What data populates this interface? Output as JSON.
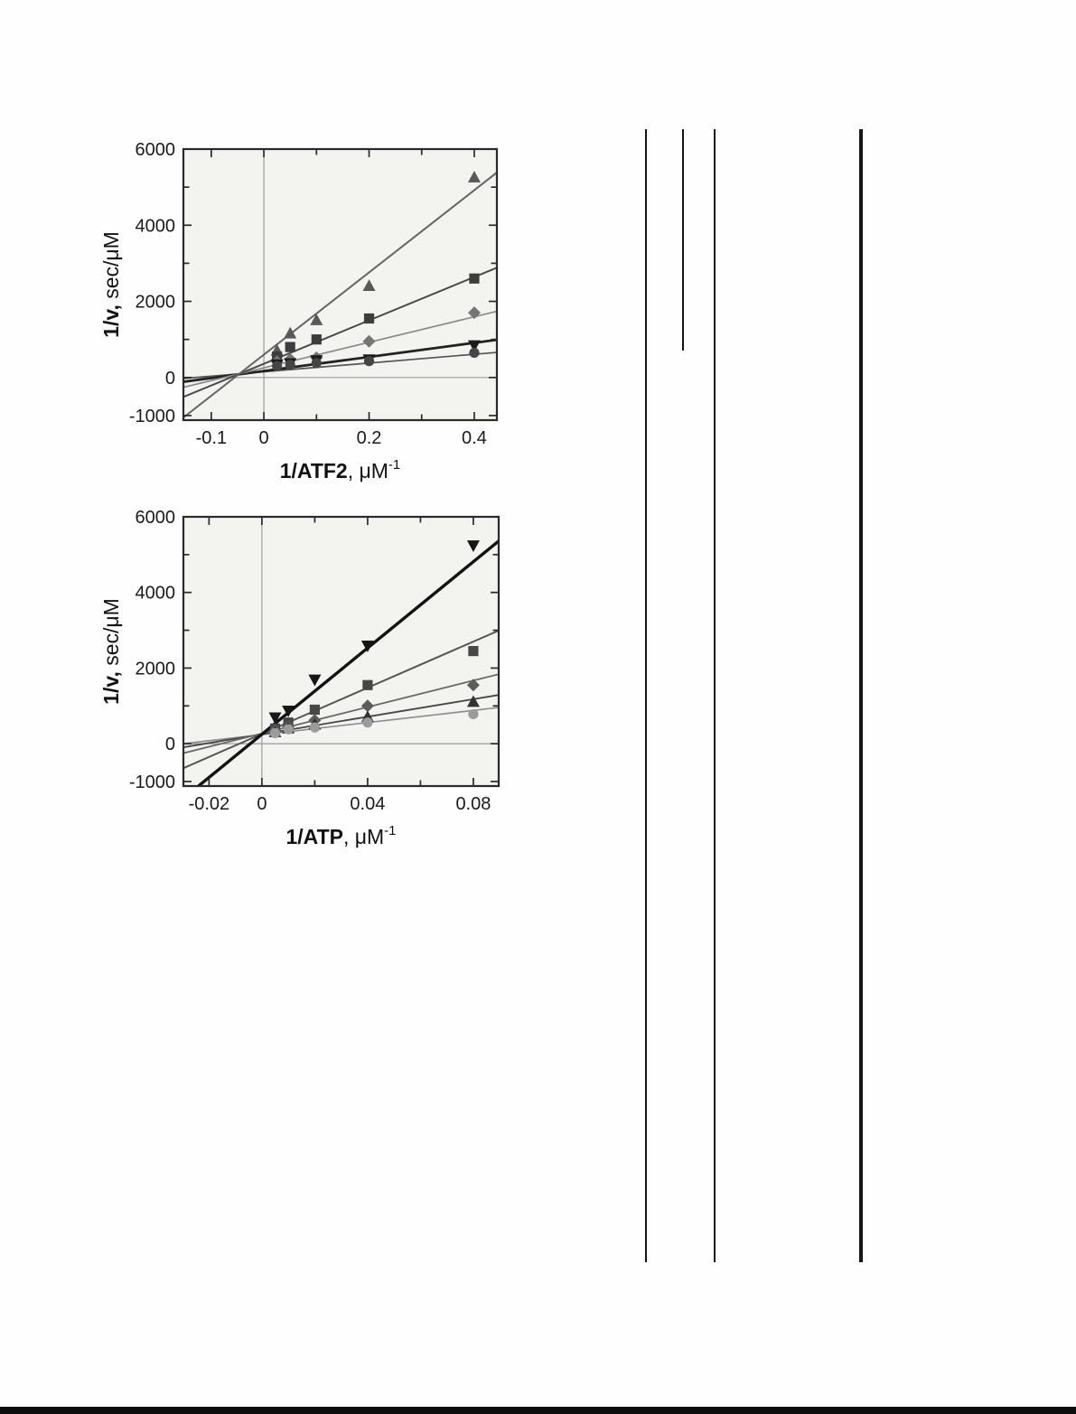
{
  "page": {
    "background_color": "#fefefe",
    "accent_ink_color": "#161616"
  },
  "chart_data": [
    {
      "type": "scatter",
      "title": "",
      "xlabel": {
        "bold": "1/ATF2",
        "unit": ", μM",
        "sup": "-1"
      },
      "ylabel": {
        "bold": "1/v,",
        "unit": " sec/μM"
      },
      "xlim": [
        -0.153,
        0.443
      ],
      "ylim": [
        -1120,
        6000
      ],
      "grid": false,
      "legend": null,
      "plot_bg": "#f3f3f0",
      "axis_color": "#2a2a2a",
      "zero_line_color": "#9a9a9a",
      "x_ticks": [
        {
          "v": -0.1,
          "label": "-0.1"
        },
        {
          "v": 0,
          "label": "0"
        },
        {
          "v": 0.1
        },
        {
          "v": 0.2,
          "label": "0.2"
        },
        {
          "v": 0.3
        },
        {
          "v": 0.4,
          "label": "0.4"
        }
      ],
      "y_ticks": [
        {
          "v": -1000,
          "label": "-1000"
        },
        {
          "v": 0,
          "label": "0"
        },
        {
          "v": 1000
        },
        {
          "v": 2000,
          "label": "2000"
        },
        {
          "v": 3000
        },
        {
          "v": 4000,
          "label": "4000"
        },
        {
          "v": 5000
        },
        {
          "v": 6000,
          "label": "6000"
        }
      ],
      "series": [
        {
          "name": "triangle-up-series",
          "marker": "triangle-up",
          "color": "#595959",
          "line_color": "#636363",
          "line_width": 2,
          "x": [
            0.025,
            0.05,
            0.1,
            0.2,
            0.4
          ],
          "y": [
            700,
            1150,
            1500,
            2400,
            5250
          ],
          "fit_line": {
            "x": [
              -0.153,
              0.443
            ],
            "y": [
              -1052,
              5384
            ]
          }
        },
        {
          "name": "square-series",
          "marker": "square",
          "color": "#3d3d3d",
          "line_color": "#4a4a4a",
          "line_width": 2,
          "x": [
            0.025,
            0.05,
            0.1,
            0.2,
            0.4
          ],
          "y": [
            550,
            800,
            1000,
            1550,
            2600
          ],
          "fit_line": {
            "x": [
              -0.153,
              0.443
            ],
            "y": [
              -512,
              2885
            ]
          }
        },
        {
          "name": "diamond-series",
          "marker": "diamond",
          "color": "#757575",
          "line_color": "#8a8a8a",
          "line_width": 1.7,
          "x": [
            0.025,
            0.05,
            0.1,
            0.2,
            0.4
          ],
          "y": [
            420,
            480,
            520,
            950,
            1700
          ],
          "fit_line": {
            "x": [
              -0.153,
              0.443
            ],
            "y": [
              -258,
              1739
            ]
          }
        },
        {
          "name": "triangle-down-series",
          "marker": "triangle-down",
          "color": "#1c1c1c",
          "line_color": "#222222",
          "line_width": 2.8,
          "x": [
            0.025,
            0.05,
            0.1,
            0.2,
            0.4
          ],
          "y": [
            350,
            380,
            460,
            480,
            850
          ],
          "fit_line": {
            "x": [
              -0.153,
              0.443
            ],
            "y": [
              -113,
              990
            ]
          }
        },
        {
          "name": "circle-series",
          "marker": "circle",
          "color": "#454545",
          "line_color": "#555555",
          "line_width": 1.7,
          "x": [
            0.025,
            0.05,
            0.1,
            0.2,
            0.4
          ],
          "y": [
            300,
            330,
            380,
            430,
            650
          ],
          "fit_line": {
            "x": [
              -0.153,
              0.443
            ],
            "y": [
              -26,
              659
            ]
          }
        }
      ]
    },
    {
      "type": "scatter",
      "title": "",
      "xlabel": {
        "bold": "1/ATP",
        "unit": ", μM",
        "sup": "-1"
      },
      "ylabel": {
        "bold": "1/v,",
        "unit": " sec/μM"
      },
      "xlim": [
        -0.0297,
        0.0896
      ],
      "ylim": [
        -1120,
        6000
      ],
      "grid": false,
      "legend": null,
      "plot_bg": "#f3f3f0",
      "axis_color": "#2a2a2a",
      "zero_line_color": "#9a9a9a",
      "x_ticks": [
        {
          "v": -0.02,
          "label": "-0.02"
        },
        {
          "v": 0,
          "label": "0"
        },
        {
          "v": 0.02
        },
        {
          "v": 0.04,
          "label": "0.04"
        },
        {
          "v": 0.06
        },
        {
          "v": 0.08,
          "label": "0.08"
        }
      ],
      "y_ticks": [
        {
          "v": -1000,
          "label": "-1000"
        },
        {
          "v": 0,
          "label": "0"
        },
        {
          "v": 1000
        },
        {
          "v": 2000,
          "label": "2000"
        },
        {
          "v": 3000
        },
        {
          "v": 4000,
          "label": "4000"
        },
        {
          "v": 5000
        },
        {
          "v": 6000,
          "label": "6000"
        }
      ],
      "series": [
        {
          "name": "triangle-down-series",
          "marker": "triangle-down",
          "color": "#161616",
          "line_color": "#121212",
          "line_width": 3.4,
          "x": [
            0.005,
            0.01,
            0.02,
            0.04,
            0.08
          ],
          "y": [
            700,
            880,
            1700,
            2600,
            5250
          ],
          "fit_line": {
            "x": [
              -0.024,
              0.0896
            ],
            "y": [
              -1120,
              5360
            ]
          }
        },
        {
          "name": "square-series",
          "marker": "square",
          "color": "#474747",
          "line_color": "#555555",
          "line_width": 2,
          "x": [
            0.005,
            0.01,
            0.02,
            0.04,
            0.08
          ],
          "y": [
            400,
            560,
            900,
            1550,
            2450
          ],
          "fit_line": {
            "x": [
              -0.0297,
              0.0896
            ],
            "y": [
              -646,
              2993
            ]
          }
        },
        {
          "name": "diamond-series",
          "marker": "diamond",
          "color": "#5c5c5c",
          "line_color": "#6a6a6a",
          "line_width": 1.8,
          "x": [
            0.005,
            0.01,
            0.02,
            0.04,
            0.08
          ],
          "y": [
            350,
            450,
            620,
            1000,
            1550
          ],
          "fit_line": {
            "x": [
              -0.0297,
              0.0896
            ],
            "y": [
              -250,
              1838
            ]
          }
        },
        {
          "name": "triangle-up-series",
          "marker": "triangle-up",
          "color": "#333333",
          "line_color": "#444444",
          "line_width": 1.8,
          "x": [
            0.005,
            0.01,
            0.02,
            0.04,
            0.08
          ],
          "y": [
            300,
            400,
            500,
            700,
            1100
          ],
          "fit_line": {
            "x": [
              -0.0297,
              0.0896
            ],
            "y": [
              -95,
              1289
            ]
          }
        },
        {
          "name": "circle-series",
          "marker": "circle",
          "color": "#9b9b9b",
          "line_color": "#8f8f8f",
          "line_width": 1.7,
          "x": [
            0.005,
            0.01,
            0.02,
            0.04,
            0.08
          ],
          "y": [
            280,
            380,
            430,
            560,
            780
          ],
          "fit_line": {
            "x": [
              -0.0297,
              0.0896
            ],
            "y": [
              0,
              957
            ]
          }
        }
      ]
    }
  ]
}
